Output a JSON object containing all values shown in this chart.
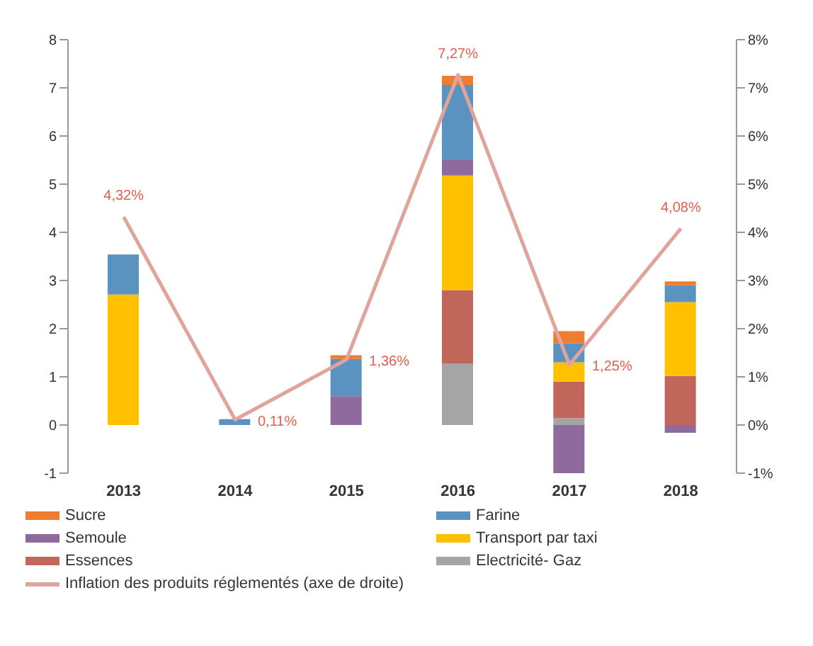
{
  "chart_data": {
    "type": "bar",
    "stacked": true,
    "categories": [
      "2013",
      "2014",
      "2015",
      "2016",
      "2017",
      "2018"
    ],
    "series": [
      {
        "name": "Electricité- Gaz",
        "color": "#a5a5a5",
        "values": [
          null,
          null,
          null,
          1.28,
          0.14,
          null
        ]
      },
      {
        "name": "Essences",
        "color": "#c0665a",
        "values": [
          null,
          null,
          null,
          1.52,
          0.76,
          1.02
        ]
      },
      {
        "name": "Transport par taxi",
        "color": "#ffc000",
        "values": [
          2.71,
          null,
          null,
          2.38,
          0.4,
          1.53
        ]
      },
      {
        "name": "Semoule",
        "color": "#8e6a9e",
        "values": [
          null,
          null,
          0.6,
          0.32,
          -1.0,
          -0.16
        ]
      },
      {
        "name": "Farine",
        "color": "#5a93c0",
        "values": [
          0.83,
          0.12,
          0.77,
          1.56,
          0.4,
          0.35
        ]
      },
      {
        "name": "Sucre",
        "color": "#ed7d31",
        "values": [
          null,
          null,
          0.08,
          0.19,
          0.25,
          0.08
        ]
      },
      {
        "name": "Inflation des produits réglementés (axe de droite)",
        "type": "line",
        "axis": "y2",
        "color": "#e0a49c",
        "values": [
          4.32,
          0.11,
          1.36,
          7.27,
          1.25,
          4.08
        ],
        "value_labels": [
          "4,32%",
          "0,11%",
          "1,36%",
          "7,27%",
          "1,25%",
          "4,08%"
        ]
      }
    ],
    "ylim": [
      -1,
      8
    ],
    "yticks": [
      -1,
      0,
      1,
      2,
      3,
      4,
      5,
      6,
      7,
      8
    ],
    "y2lim": [
      -1,
      8
    ],
    "y2ticks": [
      {
        "value": -1,
        "label": "-1%"
      },
      {
        "value": 0,
        "label": "0%"
      },
      {
        "value": 1,
        "label": "1%"
      },
      {
        "value": 2,
        "label": "2%"
      },
      {
        "value": 3,
        "label": "3%"
      },
      {
        "value": 4,
        "label": "4%"
      },
      {
        "value": 5,
        "label": "5%"
      },
      {
        "value": 6,
        "label": "6%"
      },
      {
        "value": 7,
        "label": "7%"
      },
      {
        "value": 8,
        "label": "8%"
      }
    ],
    "grid": false,
    "legend": "bottom"
  }
}
